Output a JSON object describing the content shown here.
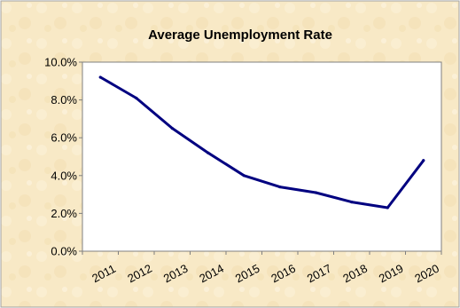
{
  "colors": {
    "background": "#F8E9C6",
    "plot_area": "#FFFFFF",
    "line": "#000080",
    "axis": "#808080",
    "frame": "#A0A0A0"
  },
  "chart_data": {
    "type": "line",
    "title": "Average Unemployment Rate",
    "xlabel": "",
    "ylabel": "",
    "x": [
      "2011",
      "2012",
      "2013",
      "2014",
      "2015",
      "2016",
      "2017",
      "2018",
      "2019",
      "2020"
    ],
    "series": [
      {
        "values": [
          9.2,
          8.1,
          6.5,
          5.2,
          4.0,
          3.4,
          3.1,
          2.6,
          2.3,
          4.8
        ]
      }
    ],
    "ylim": [
      0,
      10
    ],
    "yticks": [
      0,
      2,
      4,
      6,
      8,
      10
    ],
    "ytick_labels": [
      "0.0%",
      "2.0%",
      "4.0%",
      "6.0%",
      "8.0%",
      "10.0%"
    ],
    "grid": false,
    "legend": "none"
  }
}
